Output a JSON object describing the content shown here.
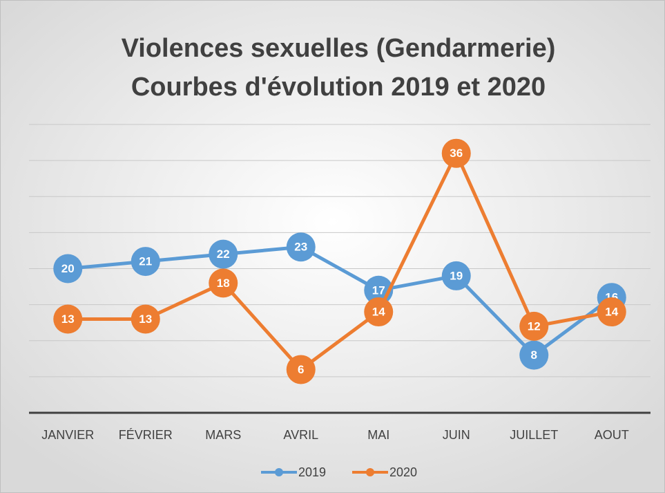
{
  "chart_data": {
    "type": "line",
    "title": [
      "Violences sexuelles (Gendarmerie)",
      "Courbes d'évolution 2019 et 2020"
    ],
    "categories": [
      "JANVIER",
      "FÉVRIER",
      "MARS",
      "AVRIL",
      "MAI",
      "JUIN",
      "JUILLET",
      "AOUT"
    ],
    "series": [
      {
        "name": "2019",
        "color": "#5b9bd5",
        "values": [
          20,
          21,
          22,
          23,
          17,
          19,
          8,
          16
        ]
      },
      {
        "name": "2020",
        "color": "#ed7d31",
        "values": [
          13,
          13,
          18,
          6,
          14,
          36,
          12,
          14
        ]
      }
    ],
    "ylim": [
      0,
      40
    ],
    "yticks": [
      0,
      5,
      10,
      15,
      20,
      25,
      30,
      35,
      40
    ],
    "grid": true,
    "legend": "bottom"
  }
}
